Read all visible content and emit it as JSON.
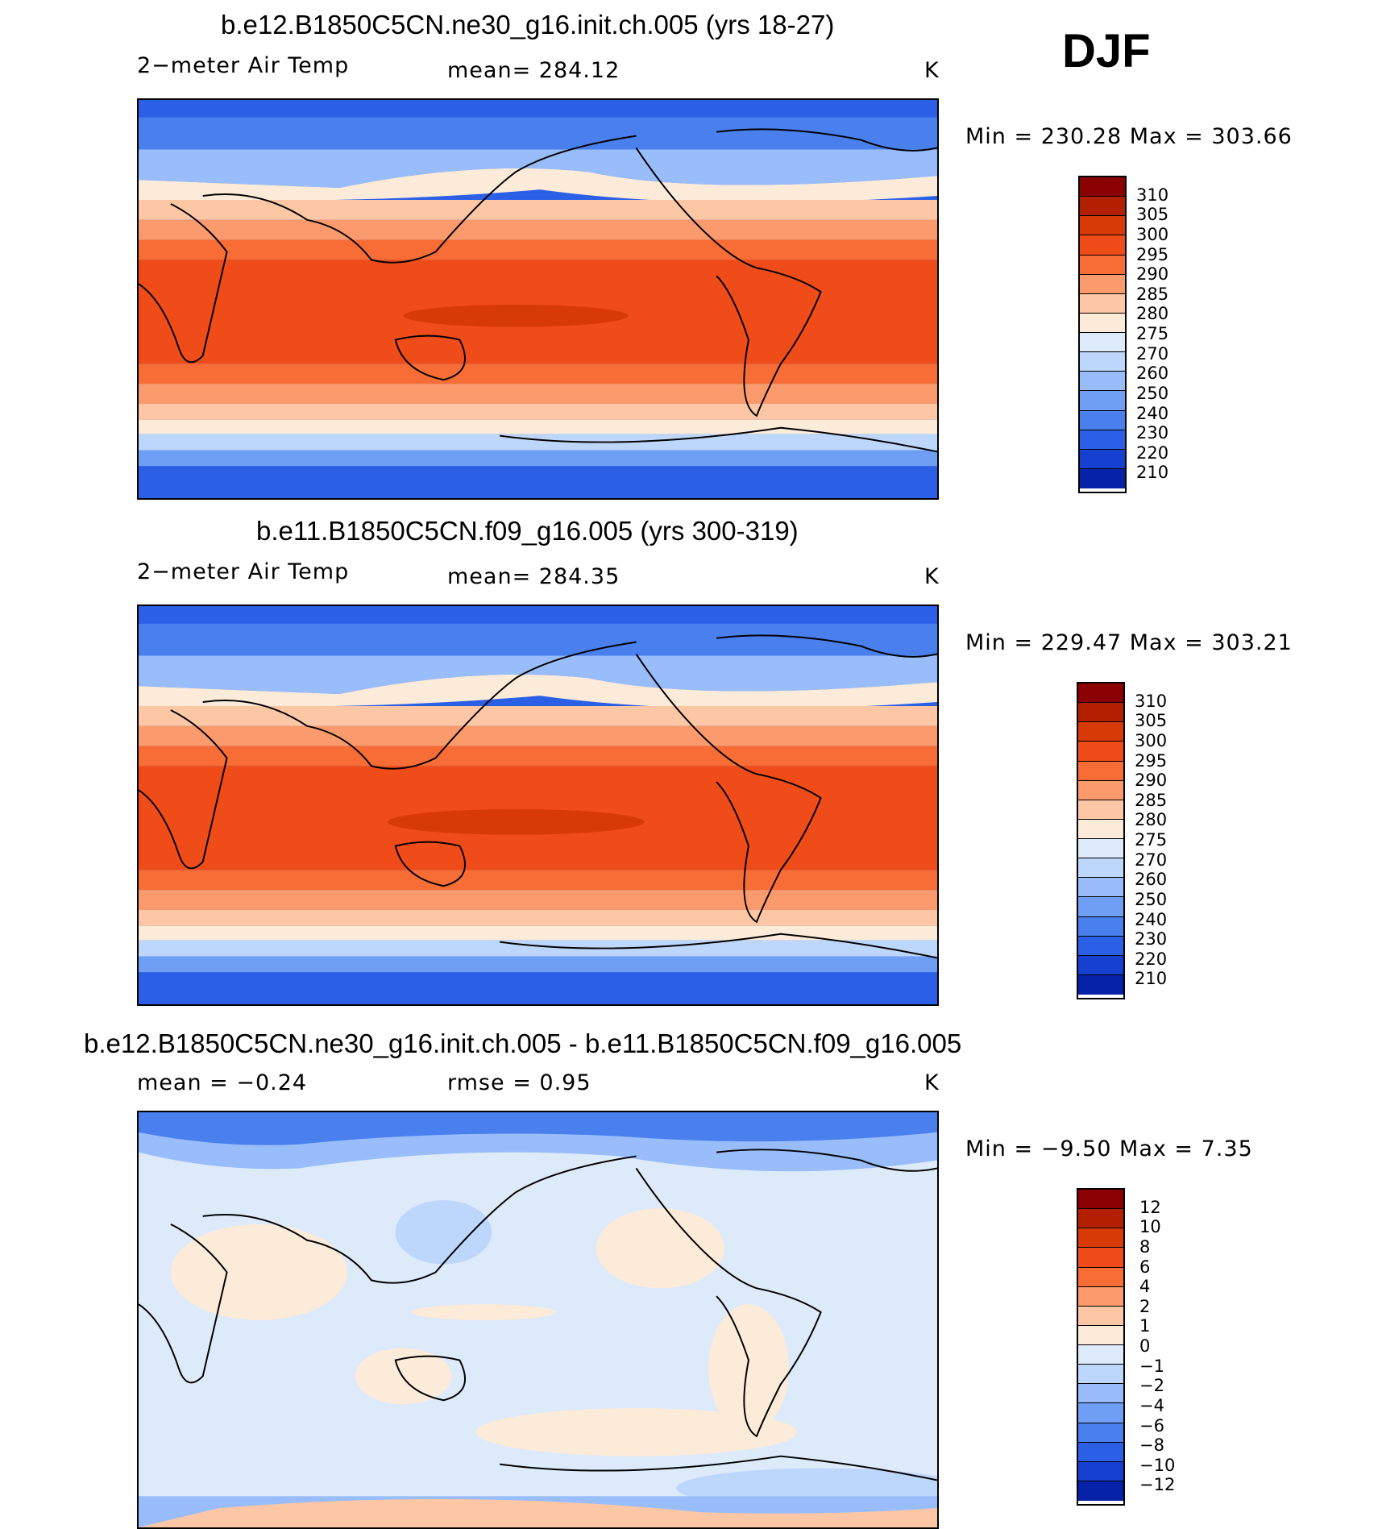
{
  "season": "DJF",
  "panels": [
    {
      "title": "b.e12.B1850C5CN.ne30_g16.init.ch.005 (yrs 18-27)",
      "left_label": "2−meter Air Temp",
      "center_label": "mean=  284.12",
      "units": "K",
      "minmax": "Min  =  230.28  Max  =  303.66",
      "colorbar": {
        "labels": [
          "310",
          "305",
          "300",
          "295",
          "290",
          "285",
          "280",
          "275",
          "270",
          "260",
          "250",
          "240",
          "230",
          "220",
          "210"
        ],
        "colors": [
          "#8b0000",
          "#b22000",
          "#d83a06",
          "#f04c1a",
          "#f86c36",
          "#fb9a6c",
          "#fdc7a5",
          "#fdebd9",
          "#dceafa",
          "#bdd6fb",
          "#98bdfa",
          "#6f9ff4",
          "#4a7fee",
          "#2b5fe6",
          "#1540d0",
          "#0522a8"
        ]
      }
    },
    {
      "title": "b.e11.B1850C5CN.f09_g16.005 (yrs 300-319)",
      "left_label": "2−meter Air Temp",
      "center_label": "mean=  284.35",
      "units": "K",
      "minmax": "Min  =  229.47  Max  =  303.21",
      "colorbar": {
        "labels": [
          "310",
          "305",
          "300",
          "295",
          "290",
          "285",
          "280",
          "275",
          "270",
          "260",
          "250",
          "240",
          "230",
          "220",
          "210"
        ],
        "colors": [
          "#8b0000",
          "#b22000",
          "#d83a06",
          "#f04c1a",
          "#f86c36",
          "#fb9a6c",
          "#fdc7a5",
          "#fdebd9",
          "#dceafa",
          "#bdd6fb",
          "#98bdfa",
          "#6f9ff4",
          "#4a7fee",
          "#2b5fe6",
          "#1540d0",
          "#0522a8"
        ]
      }
    },
    {
      "title": "b.e12.B1850C5CN.ne30_g16.init.ch.005 - b.e11.B1850C5CN.f09_g16.005",
      "left_label": "mean  =    −0.24",
      "center_label": "rmse  =     0.95",
      "units": "K",
      "minmax": "Min  =    −9.50  Max  =     7.35",
      "colorbar": {
        "labels": [
          "12",
          "10",
          "8",
          "6",
          "4",
          "2",
          "1",
          "0",
          "−1",
          "−2",
          "−4",
          "−6",
          "−8",
          "−10",
          "−12"
        ],
        "colors": [
          "#8b0000",
          "#b22000",
          "#d83a06",
          "#f04c1a",
          "#f86c36",
          "#fb9a6c",
          "#fdc7a5",
          "#fdebd9",
          "#dceafa",
          "#bdd6fb",
          "#98bdfa",
          "#6f9ff4",
          "#4a7fee",
          "#2b5fe6",
          "#1540d0",
          "#0522a8"
        ]
      }
    }
  ]
}
